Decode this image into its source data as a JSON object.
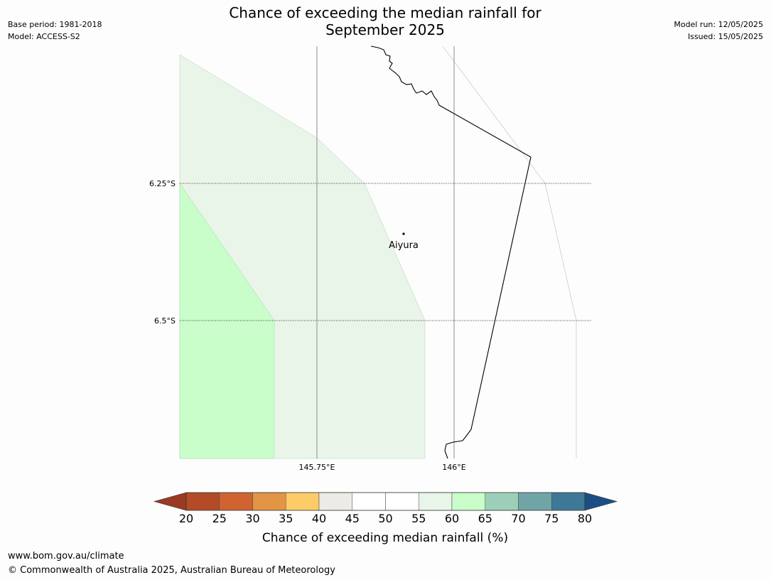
{
  "header": {
    "base_period": "Base period: 1981-2018",
    "model": "Model: ACCESS-S2",
    "model_run": "Model run: 12/05/2025",
    "issued": "Issued: 15/05/2025",
    "title_line1": "Chance of exceeding the median rainfall for",
    "title_line2": "September 2025"
  },
  "map": {
    "lat_labels": [
      "6.25°S",
      "6.5°S"
    ],
    "lon_labels": [
      "145.75°E",
      "146°E"
    ],
    "place": {
      "name": "Aiyura",
      "lon": 145.905,
      "lat": -6.343
    },
    "region_fills": [
      {
        "category": "55-60",
        "color": "#eaf5ea"
      },
      {
        "category": "60-65",
        "color": "#c9fdca"
      }
    ]
  },
  "colorbar": {
    "title": "Chance of exceeding median rainfall (%)",
    "ticks": [
      "20",
      "25",
      "30",
      "35",
      "40",
      "45",
      "50",
      "55",
      "60",
      "65",
      "70",
      "75",
      "80"
    ],
    "colors": [
      "#b34c26",
      "#cf6431",
      "#e29545",
      "#fdcc68",
      "#ecebe6",
      "#ffffff",
      "#ffffff",
      "#eaf5ea",
      "#c9fdca",
      "#9dcfb8",
      "#6fa5a6",
      "#3e7897"
    ],
    "under_color": "#9a3a22",
    "over_color": "#1b4e84"
  },
  "footer": {
    "url": "www.bom.gov.au/climate",
    "copyright": "© Commonwealth of Australia 2025, Australian Bureau of Meteorology"
  }
}
